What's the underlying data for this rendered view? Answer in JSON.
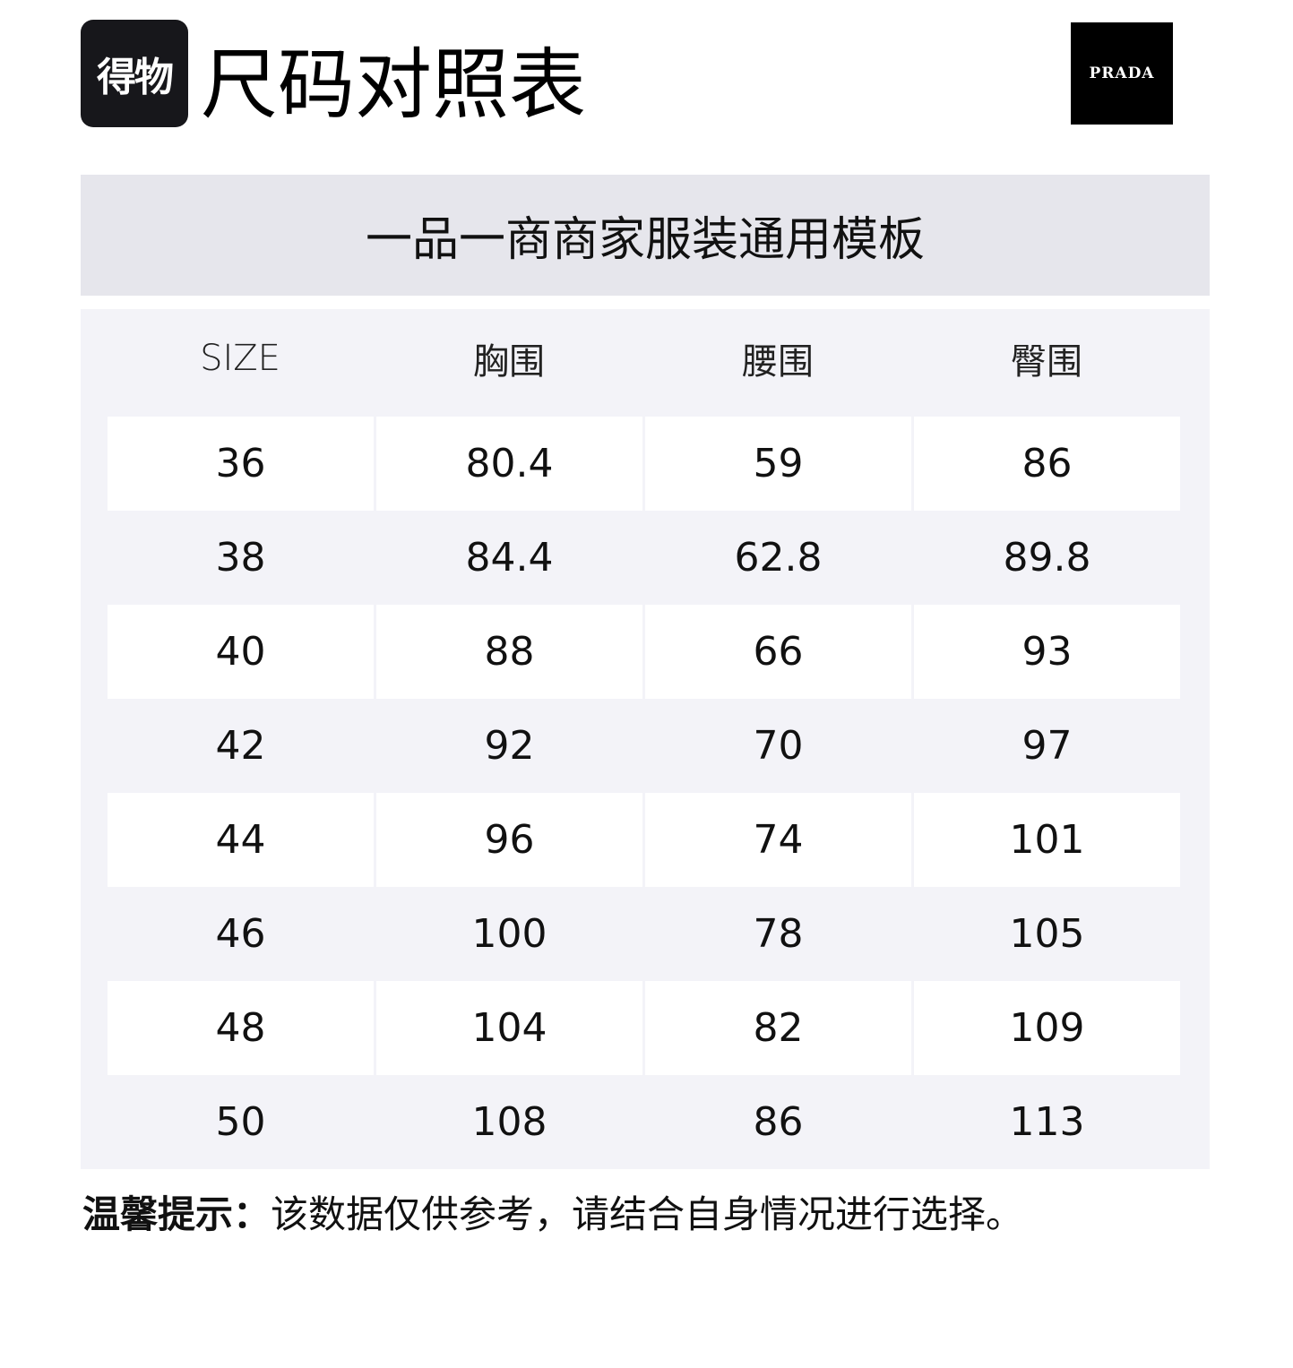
{
  "header": {
    "logo_text": "得物",
    "title": "尺码对照表",
    "brand": "PRADA"
  },
  "subtitle": "一品一商商家服装通用模板",
  "table": {
    "columns": [
      "SIZE",
      "胸围",
      "腰围",
      "臀围"
    ],
    "rows": [
      [
        "36",
        "80.4",
        "59",
        "86"
      ],
      [
        "38",
        "84.4",
        "62.8",
        "89.8"
      ],
      [
        "40",
        "88",
        "66",
        "93"
      ],
      [
        "42",
        "92",
        "70",
        "97"
      ],
      [
        "44",
        "96",
        "74",
        "101"
      ],
      [
        "46",
        "100",
        "78",
        "105"
      ],
      [
        "48",
        "104",
        "82",
        "109"
      ],
      [
        "50",
        "108",
        "86",
        "113"
      ]
    ]
  },
  "note": {
    "label": "温馨提示：",
    "text": "该数据仅供参考，请结合自身情况进行选择。"
  }
}
